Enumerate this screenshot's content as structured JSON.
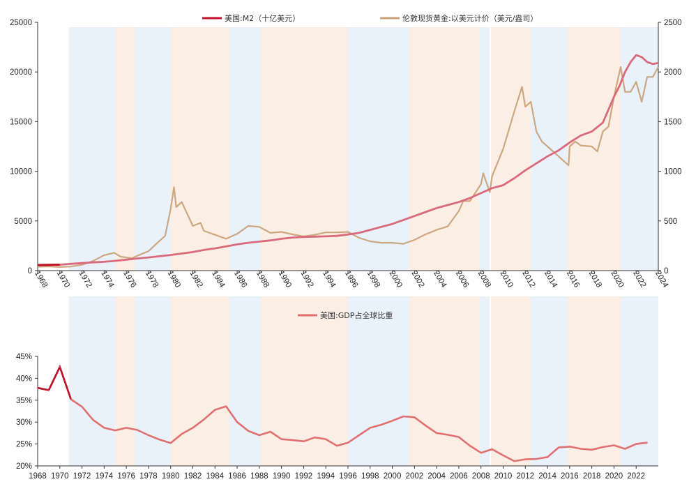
{
  "chart_data": [
    {
      "type": "line",
      "legend_position": "top-center",
      "grid": false,
      "x_ticks": [
        "1968",
        "1970",
        "1972",
        "1974",
        "1976",
        "1978",
        "1980",
        "1982",
        "1984",
        "1986",
        "1988",
        "1990",
        "1992",
        "1994",
        "1996",
        "1998",
        "2000",
        "2002",
        "2004",
        "2006",
        "2008",
        "2010",
        "2012",
        "2014",
        "2016",
        "2018",
        "2020",
        "2022",
        "2024"
      ],
      "y_left_ticks": [
        "0",
        "5000",
        "10000",
        "15000",
        "20000",
        "25000"
      ],
      "y_left_range": [
        0,
        25000
      ],
      "y_right_ticks": [
        "0",
        "500",
        "1000",
        "1500",
        "2000",
        "2500"
      ],
      "y_right_range": [
        0,
        2500
      ],
      "series": [
        {
          "name": "美国:M2（十亿美元）",
          "axis": "left",
          "color": "#c0102a",
          "x": [
            1968,
            1969,
            1970,
            1971,
            1972,
            1973,
            1974,
            1975,
            1976,
            1977,
            1978,
            1979,
            1980,
            1981,
            1982,
            1983,
            1984,
            1985,
            1986,
            1987,
            1988,
            1989,
            1990,
            1991,
            1992,
            1993,
            1994,
            1995,
            1996,
            1997,
            1998,
            1999,
            2000,
            2001,
            2002,
            2003,
            2004,
            2005,
            2006,
            2007,
            2008,
            2009,
            2010,
            2011,
            2012,
            2013,
            2014,
            2015,
            2016,
            2017,
            2018,
            2019,
            2020,
            2020.5,
            2021,
            2021.5,
            2022,
            2022.5,
            2023,
            2023.5,
            2024
          ],
          "values": [
            560,
            580,
            600,
            680,
            760,
            830,
            890,
            980,
            1100,
            1220,
            1330,
            1450,
            1570,
            1720,
            1870,
            2080,
            2240,
            2440,
            2640,
            2800,
            2920,
            3040,
            3200,
            3330,
            3390,
            3420,
            3450,
            3500,
            3640,
            3800,
            4100,
            4400,
            4700,
            5100,
            5500,
            5900,
            6300,
            6600,
            6900,
            7300,
            7800,
            8300,
            8600,
            9300,
            10100,
            10800,
            11500,
            12100,
            12900,
            13600,
            14000,
            14900,
            17500,
            18600,
            20000,
            21000,
            21700,
            21500,
            21000,
            20800,
            20900
          ]
        },
        {
          "name": "伦敦现货黄金:以美元计价（美元/盎司）",
          "axis": "right",
          "color": "#c9a27a",
          "x": [
            1968,
            1969,
            1970,
            1971,
            1972,
            1973,
            1974,
            1974.9,
            1975.5,
            1976.5,
            1977,
            1978,
            1979,
            1979.5,
            1980,
            1980.3,
            1980.5,
            1981,
            1982,
            1982.7,
            1983,
            1984,
            1985,
            1986,
            1987,
            1988,
            1989,
            1990,
            1991,
            1992,
            1993,
            1994,
            1995,
            1996,
            1997,
            1998,
            1999,
            2000,
            2001,
            2002,
            2003,
            2004,
            2005,
            2006,
            2006.4,
            2007,
            2008,
            2008.2,
            2008.8,
            2009,
            2010,
            2011,
            2011.7,
            2012,
            2012.5,
            2013,
            2013.5,
            2014,
            2015,
            2015.9,
            2016,
            2016.5,
            2017,
            2018,
            2018.5,
            2019,
            2019.5,
            2020,
            2020.6,
            2021,
            2021.5,
            2022,
            2022.5,
            2023,
            2023.5,
            2024
          ],
          "values": [
            39,
            42,
            36,
            41,
            58,
            97,
            155,
            180,
            140,
            125,
            150,
            195,
            300,
            350,
            620,
            840,
            640,
            690,
            450,
            480,
            400,
            360,
            320,
            370,
            450,
            440,
            380,
            390,
            365,
            345,
            360,
            385,
            385,
            390,
            330,
            295,
            280,
            280,
            270,
            310,
            365,
            410,
            445,
            600,
            700,
            700,
            870,
            980,
            790,
            950,
            1225,
            1600,
            1850,
            1650,
            1700,
            1400,
            1300,
            1250,
            1150,
            1060,
            1250,
            1300,
            1260,
            1250,
            1200,
            1400,
            1450,
            1750,
            2050,
            1800,
            1800,
            1900,
            1700,
            1950,
            1950,
            2050
          ]
        }
      ]
    },
    {
      "type": "line",
      "legend_position": "top-center",
      "grid": false,
      "x_ticks": [
        "1968",
        "1970",
        "1972",
        "1974",
        "1976",
        "1978",
        "1980",
        "1982",
        "1984",
        "1986",
        "1988",
        "1990",
        "1992",
        "1994",
        "1996",
        "1998",
        "2000",
        "2002",
        "2004",
        "2006",
        "2008",
        "2010",
        "2012",
        "2014",
        "2016",
        "2018",
        "2020",
        "2022"
      ],
      "y_ticks": [
        "20%",
        "25%",
        "30%",
        "35%",
        "40%",
        "45%"
      ],
      "y_range": [
        20,
        45
      ],
      "series": [
        {
          "name": "美国:GDP占全球比重",
          "color": "#e07070",
          "x": [
            1968,
            1969,
            1970,
            1971,
            1972,
            1973,
            1974,
            1975,
            1976,
            1977,
            1978,
            1979,
            1980,
            1981,
            1982,
            1983,
            1984,
            1985,
            1986,
            1987,
            1988,
            1989,
            1990,
            1991,
            1992,
            1993,
            1994,
            1995,
            1996,
            1997,
            1998,
            1999,
            2000,
            2001,
            2002,
            2003,
            2004,
            2005,
            2006,
            2007,
            2008,
            2009,
            2010,
            2011,
            2012,
            2013,
            2014,
            2015,
            2016,
            2017,
            2018,
            2019,
            2020,
            2021,
            2022,
            2023
          ],
          "values": [
            37.8,
            37.3,
            42.6,
            35.2,
            33.5,
            30.5,
            28.7,
            28.1,
            28.7,
            28.2,
            27.0,
            26.0,
            25.2,
            27.3,
            28.7,
            30.6,
            32.8,
            33.6,
            30.0,
            28.0,
            27.0,
            27.8,
            26.1,
            25.9,
            25.6,
            26.5,
            26.1,
            24.6,
            25.3,
            27.0,
            28.7,
            29.4,
            30.3,
            31.3,
            31.1,
            29.2,
            27.5,
            27.1,
            26.6,
            24.6,
            23.0,
            23.8,
            22.4,
            21.1,
            21.5,
            21.6,
            22.0,
            24.2,
            24.4,
            23.9,
            23.7,
            24.3,
            24.7,
            23.9,
            25.0,
            25.3
          ]
        }
      ]
    }
  ],
  "shaded_periods": [
    {
      "start": 1970.8,
      "end": 1975.0,
      "color": "#e9f1fb"
    },
    {
      "start": 1975.0,
      "end": 1976.8,
      "color": "#fbeee4"
    },
    {
      "start": 1976.8,
      "end": 1980.0,
      "color": "#e9f1fb"
    },
    {
      "start": 1980.0,
      "end": 1985.3,
      "color": "#fbeee4"
    },
    {
      "start": 1985.3,
      "end": 1988.1,
      "color": "#e9f1fb"
    },
    {
      "start": 1988.1,
      "end": 1996.0,
      "color": "#fbeee4"
    },
    {
      "start": 1996.0,
      "end": 2001.5,
      "color": "#e9f1fb"
    },
    {
      "start": 2001.5,
      "end": 2007.9,
      "color": "#fbeee4"
    },
    {
      "start": 2007.9,
      "end": 2008.8,
      "color": "#e9f1fb"
    },
    {
      "start": 2008.9,
      "end": 2012.5,
      "color": "#fbeee4"
    },
    {
      "start": 2012.5,
      "end": 2015.8,
      "color": "#e9f1fb"
    },
    {
      "start": 2015.8,
      "end": 2020.6,
      "color": "#fbeee4"
    },
    {
      "start": 2020.6,
      "end": 2024.0,
      "color": "#e9f1fb"
    }
  ]
}
